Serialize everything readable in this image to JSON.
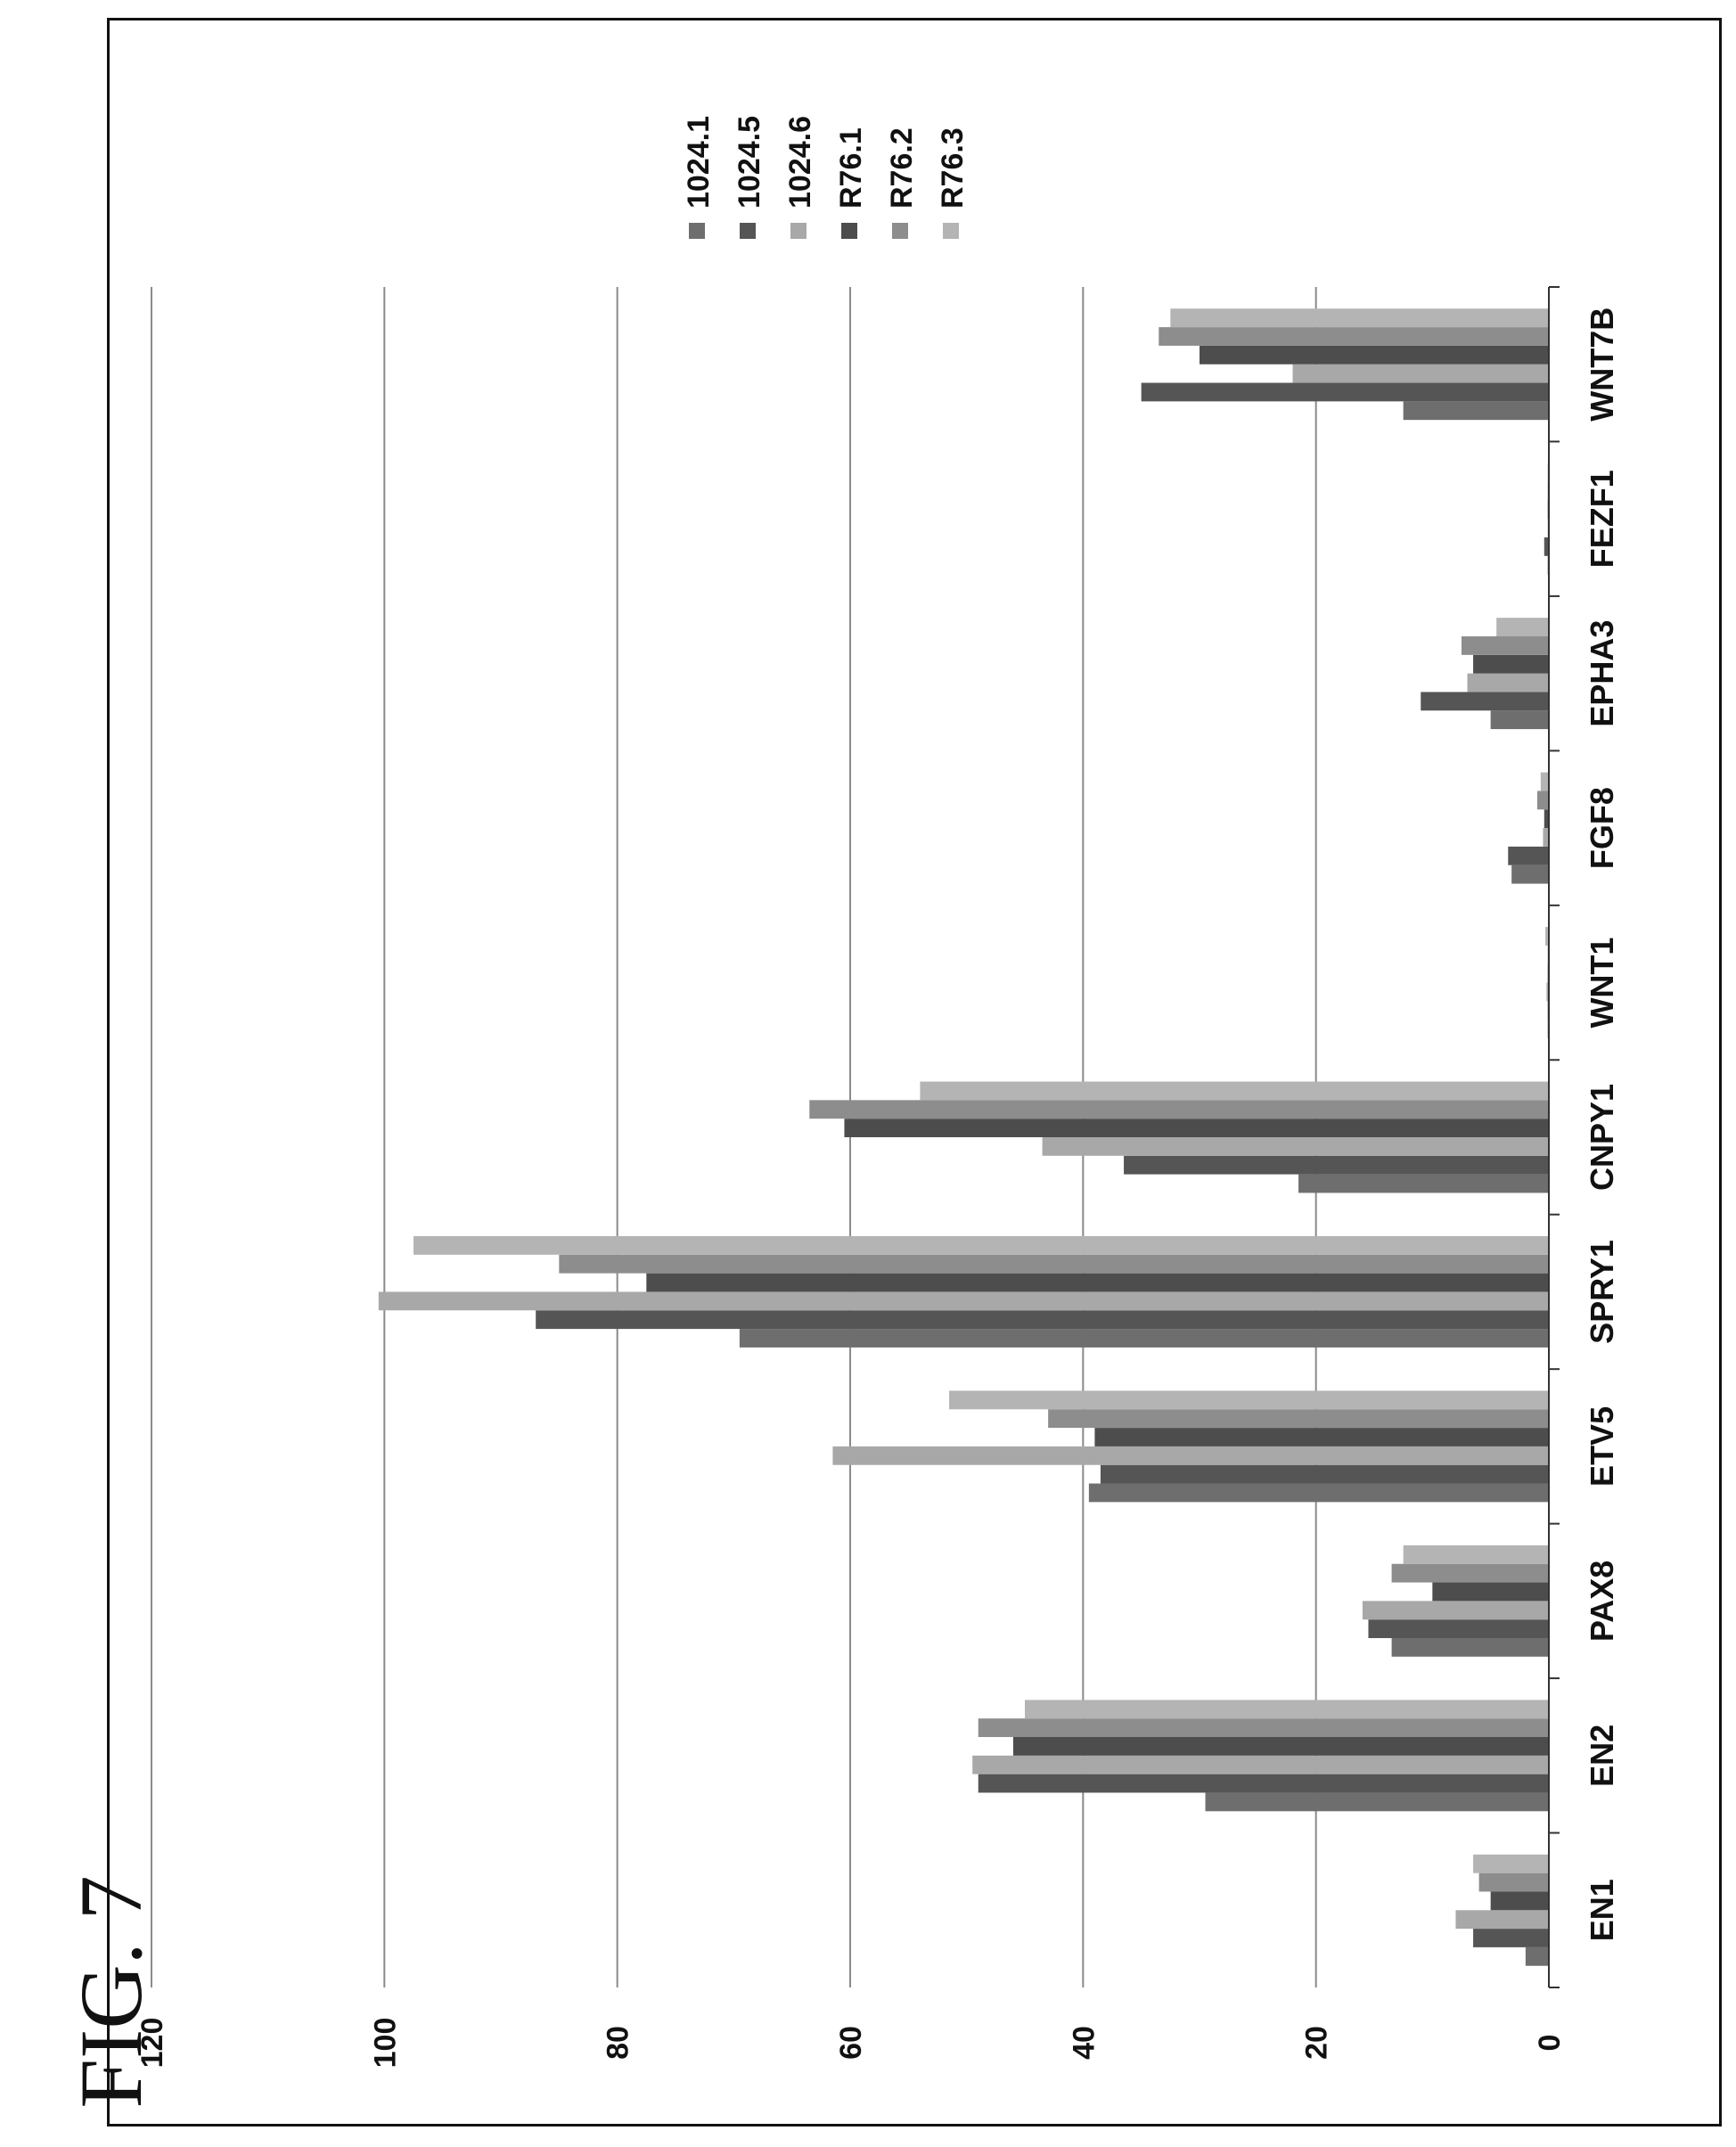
{
  "figure": {
    "label": "FIG. 7"
  },
  "colors": {
    "background": "#ffffff",
    "frame": "#111111",
    "grid": "#8a8a8a",
    "axis": "#333333",
    "series": [
      "#6e6e6e",
      "#555555",
      "#a8a8a8",
      "#4d4d4d",
      "#8d8d8d",
      "#b4b4b4"
    ]
  },
  "chart_data": {
    "type": "bar",
    "orientation": "horizontal-rotated",
    "title": "",
    "xlabel": "",
    "ylabel": "",
    "ylim": [
      0,
      120
    ],
    "yticks": [
      0,
      20,
      40,
      60,
      80,
      100,
      120
    ],
    "grid": true,
    "legend_placement": "top-right",
    "categories": [
      "EN1",
      "EN2",
      "PAX8",
      "ETV5",
      "SPRY1",
      "CNPY1",
      "WNT1",
      "FGF8",
      "EPHA3",
      "FEZF1",
      "WNT7B"
    ],
    "series": [
      {
        "name": "1024.1",
        "values": [
          2,
          29.5,
          13.5,
          39.5,
          69.5,
          21.5,
          0.1,
          3.2,
          5,
          0.1,
          12.5
        ]
      },
      {
        "name": "1024.5",
        "values": [
          6.5,
          49,
          15.5,
          38.5,
          87,
          36.5,
          0.1,
          3.5,
          11,
          0.4,
          35
        ]
      },
      {
        "name": "1024.6",
        "values": [
          8,
          49.5,
          16,
          61.5,
          100.5,
          43.5,
          0.2,
          0.5,
          7,
          0.1,
          22
        ]
      },
      {
        "name": "R76.1",
        "values": [
          5,
          46,
          10,
          39,
          77.5,
          60.5,
          0.1,
          0.4,
          6.5,
          0.1,
          30
        ]
      },
      {
        "name": "R76.2",
        "values": [
          6,
          49,
          13.5,
          43,
          85,
          63.5,
          0.1,
          1,
          7.5,
          0.1,
          33.5
        ]
      },
      {
        "name": "R76.3",
        "values": [
          6.5,
          45,
          12.5,
          51.5,
          97.5,
          54,
          0.3,
          0.7,
          4.5,
          0.1,
          32.5
        ]
      }
    ]
  }
}
